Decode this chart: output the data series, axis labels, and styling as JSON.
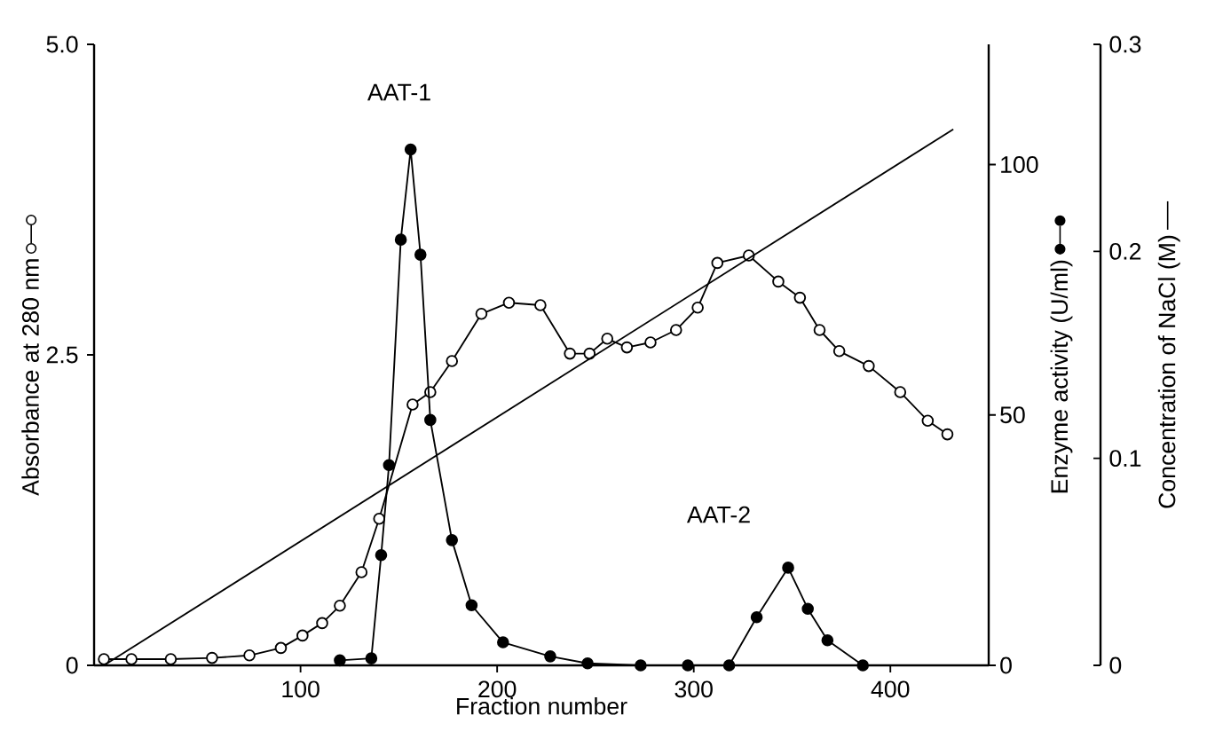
{
  "chart_data": {
    "type": "line",
    "xlabel": "Fraction number",
    "ylabel": "Absorbance at 280 nm",
    "y2label": "Enzyme activity (U/ml)",
    "y3label": "Concentration of NaCl (M)",
    "xlim": [
      -5,
      450
    ],
    "xticks": [
      100,
      200,
      300,
      400
    ],
    "ylim": [
      0,
      5
    ],
    "yticks": [
      0,
      2.5,
      {
        "value": 5,
        "label": "5.0"
      }
    ],
    "y2lim": [
      0,
      124
    ],
    "y2ticks": [
      0,
      50,
      100
    ],
    "y3lim": [
      0,
      0.3
    ],
    "y3ticks": [
      0,
      0.1,
      0.2,
      0.3
    ],
    "series": [
      {
        "color": "#000000",
        "marker": "circle",
        "x": [
          0,
          14,
          34,
          55,
          74,
          90,
          101,
          111,
          120,
          131,
          140,
          157,
          166,
          177,
          192,
          206,
          222,
          237,
          247,
          256,
          266,
          278,
          291,
          302,
          312,
          328,
          343,
          354,
          364,
          374,
          389,
          405,
          419,
          429
        ],
        "values": [
          0.05,
          0.05,
          0.05,
          0.06,
          0.08,
          0.14,
          0.24,
          0.34,
          0.48,
          0.75,
          1.18,
          2.1,
          2.2,
          2.45,
          2.83,
          2.92,
          2.9,
          2.51,
          2.51,
          2.63,
          2.56,
          2.6,
          2.7,
          2.88,
          3.24,
          3.3,
          3.09,
          2.96,
          2.7,
          2.53,
          2.41,
          2.2,
          1.97,
          1.86
        ]
      },
      {
        "color": "#000000",
        "marker": "circle",
        "axis": "y2",
        "x": [
          120,
          136,
          141,
          145,
          151,
          156,
          161,
          166,
          177,
          187,
          203,
          227,
          246,
          273,
          297,
          318,
          332,
          348,
          358,
          368,
          386
        ],
        "values": [
          1,
          1.4,
          22,
          40,
          85,
          103,
          82,
          49,
          25,
          12,
          4.6,
          1.8,
          0.4,
          0,
          0,
          0,
          9.6,
          19.5,
          11.3,
          5,
          0
        ]
      },
      {
        "color": "#000000",
        "marker": "none",
        "axis": "y3",
        "x": [
          0,
          432
        ],
        "values": [
          0,
          0.259
        ]
      }
    ],
    "annotations": [
      "AAT-1",
      "AAT-2"
    ]
  }
}
